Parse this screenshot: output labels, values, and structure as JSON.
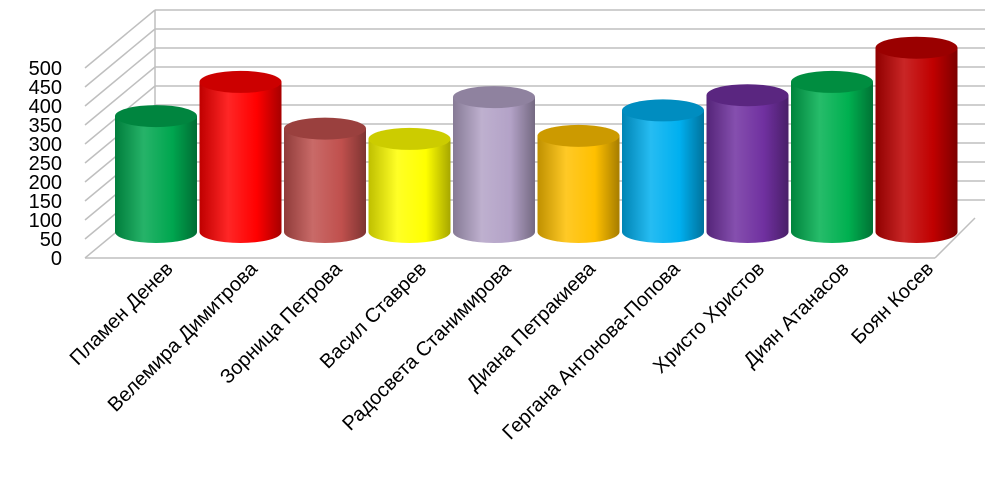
{
  "chart_data": {
    "type": "bar",
    "style": "3d-cylinder",
    "title": "",
    "xlabel": "",
    "ylabel": "",
    "ylim": [
      0,
      500
    ],
    "ytick_step": 50,
    "yticks": [
      "0",
      "50",
      "100",
      "150",
      "200",
      "250",
      "300",
      "350",
      "400",
      "450",
      "500"
    ],
    "grid": true,
    "legend": "none",
    "categories": [
      "Пламен Денев",
      "Велемира  Димитрова",
      "Зорница Петрова",
      "Васил Ставрев",
      "Радосвета Станимирова",
      "Диана Петракиева",
      "Гергана Антонова-Попова",
      "Христо Христов",
      "Диян Атанасов",
      "Боян Косев"
    ],
    "series": [
      {
        "values": [
          305,
          395,
          272,
          245,
          355,
          253,
          320,
          360,
          395,
          485
        ]
      }
    ],
    "colors": [
      "#00a64f",
      "#ff0000",
      "#c0504d",
      "#ffff00",
      "#b3a2c7",
      "#ffc000",
      "#00b0f0",
      "#7030a0",
      "#00b050",
      "#c00000"
    ]
  }
}
